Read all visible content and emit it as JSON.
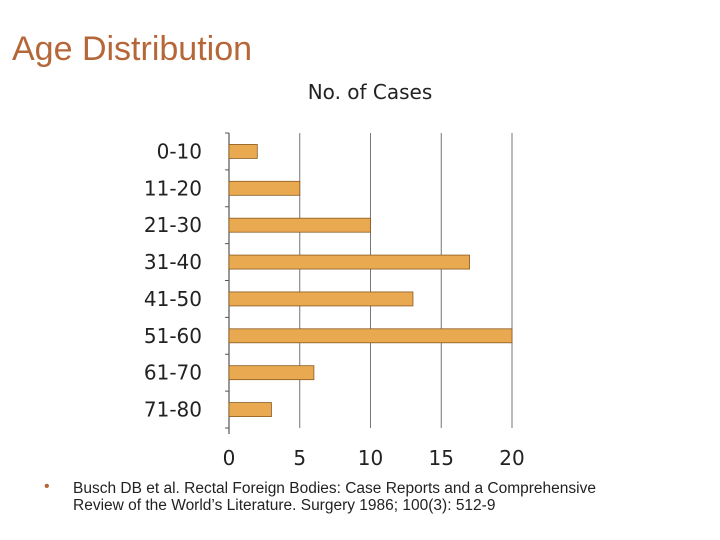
{
  "slide": {
    "title": "Age Distribution",
    "citation": "Busch DB et al. Rectal Foreign Bodies: Case Reports and a Comprehensive Review of the World’s Literature. Surgery 1986; 100(3): 512-9",
    "bullet": "•"
  },
  "colors": {
    "bar_fill": "#e9a951",
    "bar_stroke": "#8a5a20",
    "title": "#b5673a",
    "grid": "#555555"
  },
  "chart_data": {
    "type": "bar",
    "orientation": "horizontal",
    "title": "No. of Cases",
    "xlabel": "",
    "ylabel": "",
    "categories": [
      "0-10",
      "11-20",
      "21-30",
      "31-40",
      "41-50",
      "51-60",
      "61-70",
      "71-80"
    ],
    "values": [
      2,
      5,
      10,
      17,
      13,
      20,
      6,
      3
    ],
    "xlim": [
      0,
      20
    ],
    "xticks": [
      0,
      5,
      10,
      15,
      20
    ],
    "grid": true,
    "legend": "none"
  }
}
